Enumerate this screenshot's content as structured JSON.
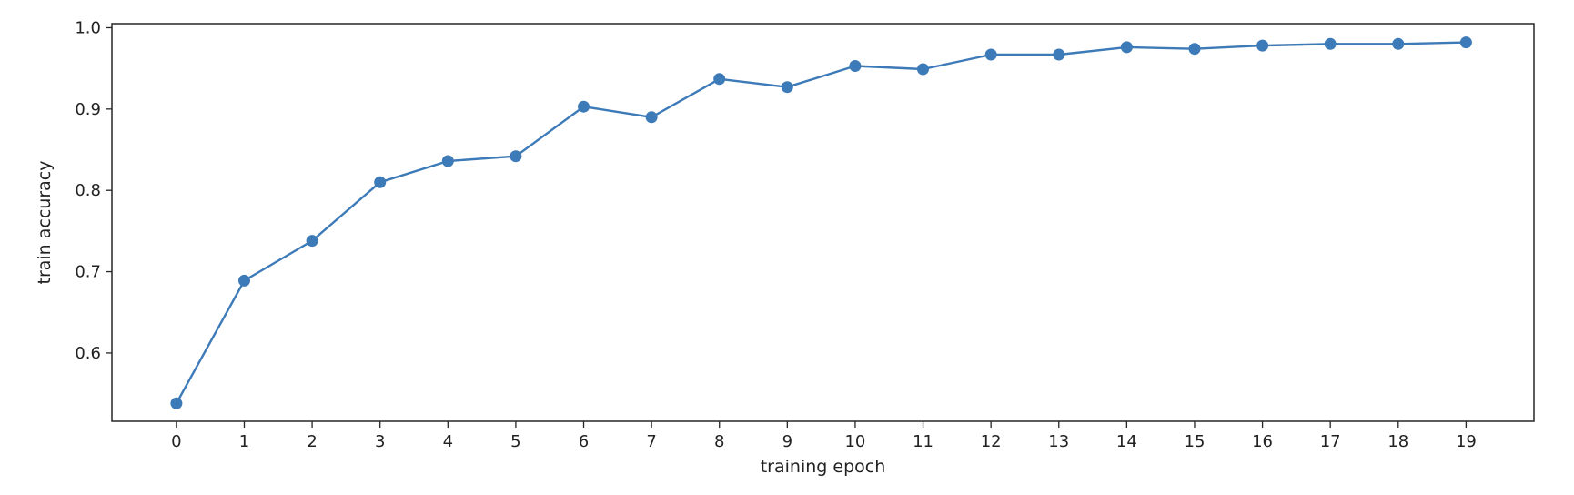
{
  "chart_data": {
    "type": "line",
    "title": "",
    "xlabel": "training epoch",
    "ylabel": "train accuracy",
    "x": [
      0,
      1,
      2,
      3,
      4,
      5,
      6,
      7,
      8,
      9,
      10,
      11,
      12,
      13,
      14,
      15,
      16,
      17,
      18,
      19
    ],
    "series": [
      {
        "values": [
          0.538,
          0.689,
          0.738,
          0.81,
          0.836,
          0.842,
          0.903,
          0.89,
          0.937,
          0.927,
          0.953,
          0.949,
          0.967,
          0.967,
          0.976,
          0.974,
          0.978,
          0.98,
          0.98,
          0.982
        ],
        "color": "#3d7ab8"
      }
    ],
    "xlim": [
      -0.95,
      20.0
    ],
    "ylim": [
      0.516,
      1.005
    ],
    "xticks": [
      0,
      1,
      2,
      3,
      4,
      5,
      6,
      7,
      8,
      9,
      10,
      11,
      12,
      13,
      14,
      15,
      16,
      17,
      18,
      19
    ],
    "yticks": [
      0.6,
      0.7,
      0.8,
      0.9,
      1.0
    ],
    "ytick_labels": [
      "0.6",
      "0.7",
      "0.8",
      "0.9",
      "1.0"
    ],
    "grid": false,
    "legend": false
  }
}
